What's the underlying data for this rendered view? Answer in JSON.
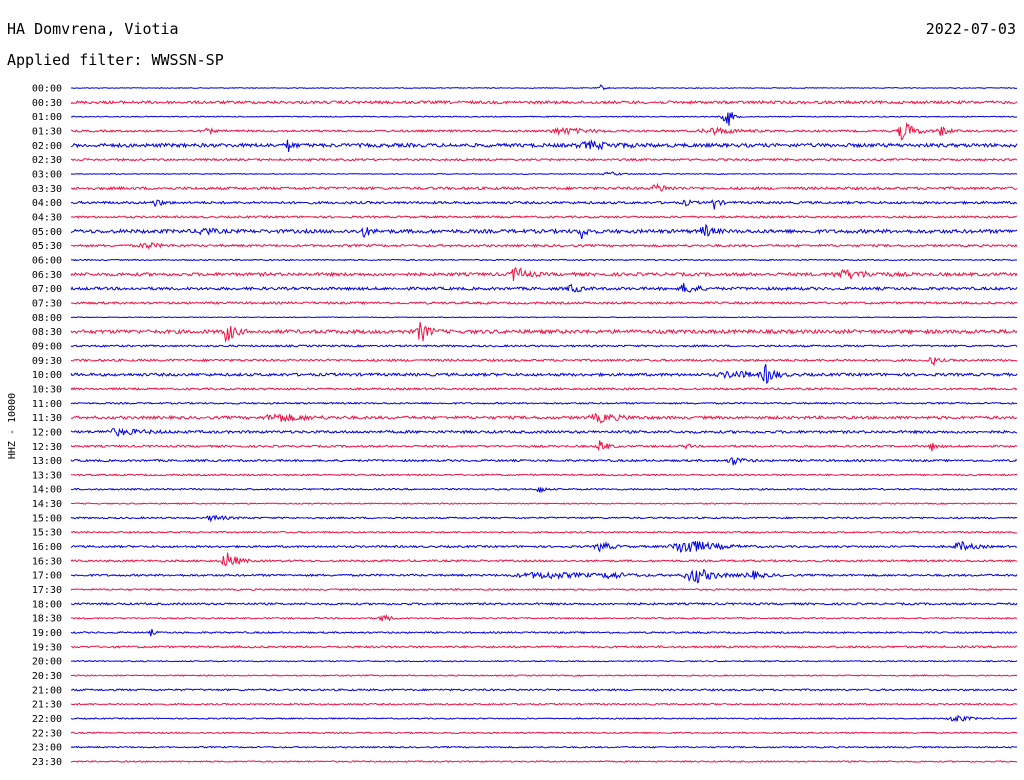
{
  "header": {
    "station": "HA Domvrena, Viotia",
    "date": "2022-07-03",
    "filter": "Applied filter: WWSSN-SP"
  },
  "chart_data": {
    "type": "line",
    "title": "HA Domvrena, Viotia",
    "ylabel": "HHZ - 10000",
    "row_labels": [
      "00:00",
      "00:30",
      "01:00",
      "01:30",
      "02:00",
      "02:30",
      "03:00",
      "03:30",
      "04:00",
      "04:30",
      "05:00",
      "05:30",
      "06:00",
      "06:30",
      "07:00",
      "07:30",
      "08:00",
      "08:30",
      "09:00",
      "09:30",
      "10:00",
      "10:30",
      "11:00",
      "11:30",
      "12:00",
      "12:30",
      "13:00",
      "13:30",
      "14:00",
      "14:30",
      "15:00",
      "15:30",
      "16:00",
      "16:30",
      "17:00",
      "17:30",
      "18:00",
      "18:30",
      "19:00",
      "19:30",
      "20:00",
      "20:30",
      "21:00",
      "21:30",
      "22:00",
      "22:30",
      "23:00",
      "23:30"
    ],
    "colors": [
      "#0000dd",
      "#ee1144"
    ],
    "noise": [
      0.4,
      1.4,
      0.5,
      1.0,
      1.8,
      1.0,
      0.4,
      1.3,
      1.2,
      1.0,
      1.8,
      1.1,
      0.6,
      1.6,
      1.4,
      1.1,
      0.4,
      1.8,
      0.9,
      1.1,
      1.4,
      1.0,
      0.8,
      1.4,
      1.3,
      1.0,
      1.0,
      0.8,
      0.8,
      0.6,
      0.8,
      0.8,
      1.0,
      1.0,
      1.0,
      0.8,
      1.0,
      0.7,
      0.8,
      1.0,
      0.6,
      0.6,
      0.9,
      0.8,
      0.6,
      0.7,
      0.7,
      0.7
    ],
    "events": [
      {
        "row": 0,
        "t": 0.56,
        "amp": 3,
        "w": 0.003
      },
      {
        "row": 2,
        "t": 0.69,
        "amp": 4,
        "w": 0.006
      },
      {
        "row": 2,
        "t": 0.695,
        "amp": 9,
        "w": 0.003
      },
      {
        "row": 3,
        "t": 0.52,
        "amp": 3,
        "w": 0.02
      },
      {
        "row": 3,
        "t": 0.68,
        "amp": 3,
        "w": 0.02
      },
      {
        "row": 3,
        "t": 0.88,
        "amp": 11,
        "w": 0.008
      },
      {
        "row": 3,
        "t": 0.92,
        "amp": 5,
        "w": 0.006
      },
      {
        "row": 3,
        "t": 0.145,
        "amp": 3,
        "w": 0.004
      },
      {
        "row": 4,
        "t": 0.23,
        "amp": 7,
        "w": 0.003
      },
      {
        "row": 4,
        "t": 0.55,
        "amp": 3,
        "w": 0.02
      },
      {
        "row": 6,
        "t": 0.57,
        "amp": 2,
        "w": 0.01
      },
      {
        "row": 7,
        "t": 0.62,
        "amp": 4,
        "w": 0.008
      },
      {
        "row": 8,
        "t": 0.09,
        "amp": 4,
        "w": 0.005
      },
      {
        "row": 8,
        "t": 0.68,
        "amp": 6,
        "w": 0.004
      },
      {
        "row": 8,
        "t": 0.65,
        "amp": 3,
        "w": 0.004
      },
      {
        "row": 10,
        "t": 0.14,
        "amp": 5,
        "w": 0.006
      },
      {
        "row": 10,
        "t": 0.31,
        "amp": 5,
        "w": 0.005
      },
      {
        "row": 10,
        "t": 0.54,
        "amp": 7,
        "w": 0.004
      },
      {
        "row": 10,
        "t": 0.67,
        "amp": 6,
        "w": 0.006
      },
      {
        "row": 11,
        "t": 0.08,
        "amp": 3,
        "w": 0.01
      },
      {
        "row": 13,
        "t": 0.47,
        "amp": 8,
        "w": 0.008
      },
      {
        "row": 13,
        "t": 0.82,
        "amp": 4,
        "w": 0.02
      },
      {
        "row": 14,
        "t": 0.53,
        "amp": 5,
        "w": 0.006
      },
      {
        "row": 14,
        "t": 0.65,
        "amp": 6,
        "w": 0.008
      },
      {
        "row": 17,
        "t": 0.165,
        "amp": 11,
        "w": 0.006
      },
      {
        "row": 17,
        "t": 0.37,
        "amp": 11,
        "w": 0.006
      },
      {
        "row": 19,
        "t": 0.91,
        "amp": 6,
        "w": 0.004
      },
      {
        "row": 20,
        "t": 0.735,
        "amp": 10,
        "w": 0.006
      },
      {
        "row": 20,
        "t": 0.7,
        "amp": 3,
        "w": 0.02
      },
      {
        "row": 23,
        "t": 0.22,
        "amp": 4,
        "w": 0.02
      },
      {
        "row": 23,
        "t": 0.56,
        "amp": 4,
        "w": 0.015
      },
      {
        "row": 24,
        "t": 0.05,
        "amp": 3,
        "w": 0.02
      },
      {
        "row": 25,
        "t": 0.56,
        "amp": 7,
        "w": 0.005
      },
      {
        "row": 25,
        "t": 0.65,
        "amp": 5,
        "w": 0.002
      },
      {
        "row": 25,
        "t": 0.91,
        "amp": 4,
        "w": 0.004
      },
      {
        "row": 26,
        "t": 0.7,
        "amp": 4,
        "w": 0.008
      },
      {
        "row": 28,
        "t": 0.495,
        "amp": 6,
        "w": 0.003
      },
      {
        "row": 30,
        "t": 0.15,
        "amp": 3,
        "w": 0.01
      },
      {
        "row": 32,
        "t": 0.56,
        "amp": 5,
        "w": 0.008
      },
      {
        "row": 32,
        "t": 0.65,
        "amp": 8,
        "w": 0.02
      },
      {
        "row": 32,
        "t": 0.94,
        "amp": 5,
        "w": 0.01
      },
      {
        "row": 33,
        "t": 0.165,
        "amp": 9,
        "w": 0.008
      },
      {
        "row": 34,
        "t": 0.5,
        "amp": 3,
        "w": 0.04
      },
      {
        "row": 34,
        "t": 0.57,
        "amp": 3,
        "w": 0.01
      },
      {
        "row": 34,
        "t": 0.66,
        "amp": 8,
        "w": 0.015
      },
      {
        "row": 34,
        "t": 0.72,
        "amp": 4,
        "w": 0.01
      },
      {
        "row": 37,
        "t": 0.33,
        "amp": 4,
        "w": 0.006
      },
      {
        "row": 38,
        "t": 0.085,
        "amp": 4,
        "w": 0.002
      },
      {
        "row": 44,
        "t": 0.935,
        "amp": 4,
        "w": 0.01
      }
    ]
  }
}
